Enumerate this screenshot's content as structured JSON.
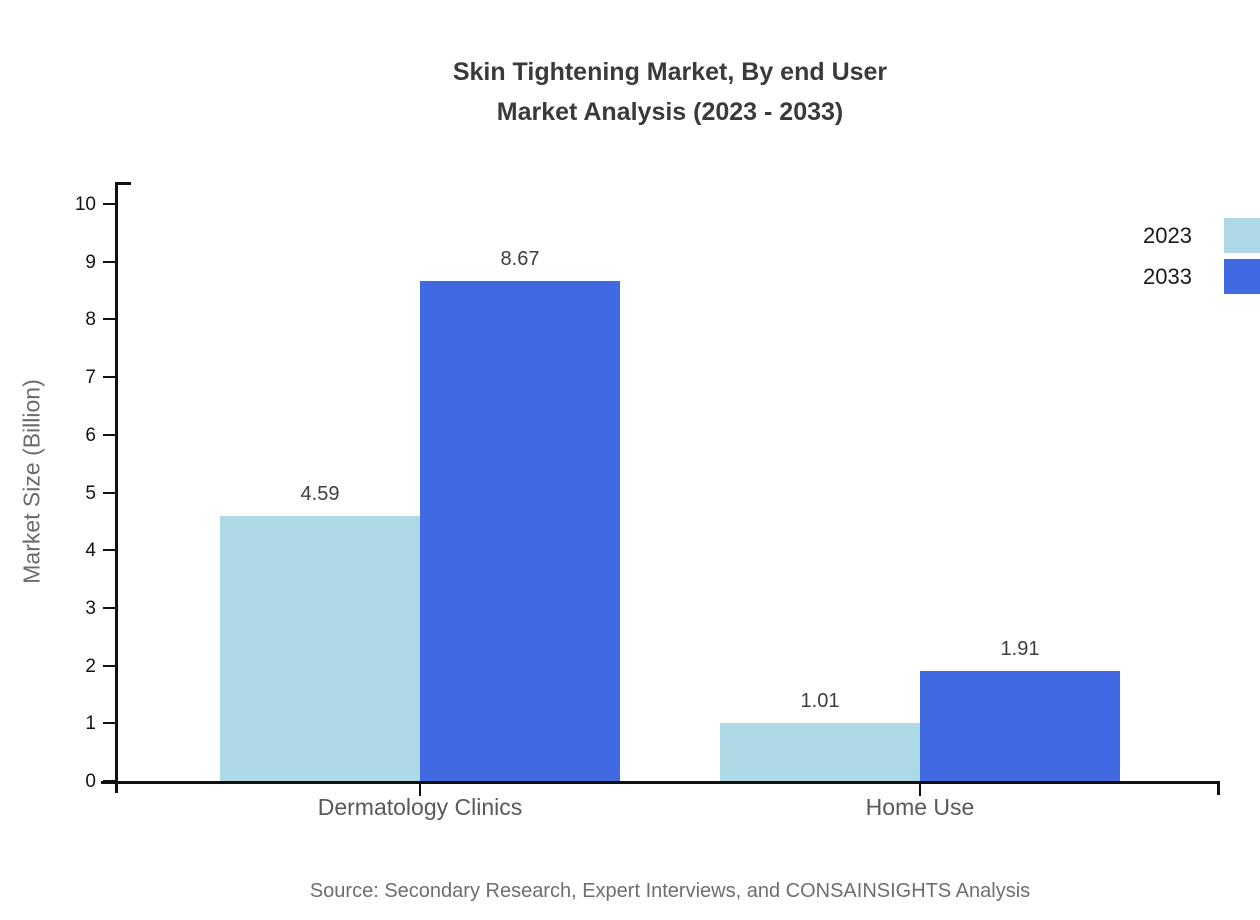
{
  "chart_data": {
    "type": "bar",
    "title": "Skin Tightening Market, By end User Market Analysis (2023 - 2033)",
    "title_lines": [
      "Skin Tightening Market, By end User",
      "Market Analysis (2023 - 2033)"
    ],
    "categories": [
      "Dermatology Clinics",
      "Home Use"
    ],
    "series": [
      {
        "name": "2023",
        "color": "#ADD8E6",
        "values": [
          4.59,
          1.01
        ]
      },
      {
        "name": "2033",
        "color": "#4169E1",
        "values": [
          8.67,
          1.91
        ]
      }
    ],
    "value_labels": [
      "4.59",
      "8.67",
      "1.01",
      "1.91"
    ],
    "xlabel": "",
    "ylabel": "Market Size (Billion)",
    "ylim": [
      0,
      10
    ],
    "ytick_step": 1,
    "yticks": [
      0,
      1,
      2,
      3,
      4,
      5,
      6,
      7,
      8,
      9,
      10
    ],
    "grid": false,
    "legend_position": "top-right",
    "source": "Source: Secondary Research, Expert Interviews, and CONSAINSIGHTS Analysis",
    "colors": {
      "series_2023": "#ADD8E6",
      "series_2033": "#4169E1",
      "axis": "#111111",
      "title_text": "#3a3a3a",
      "muted_text": "#6b6b6b"
    }
  }
}
